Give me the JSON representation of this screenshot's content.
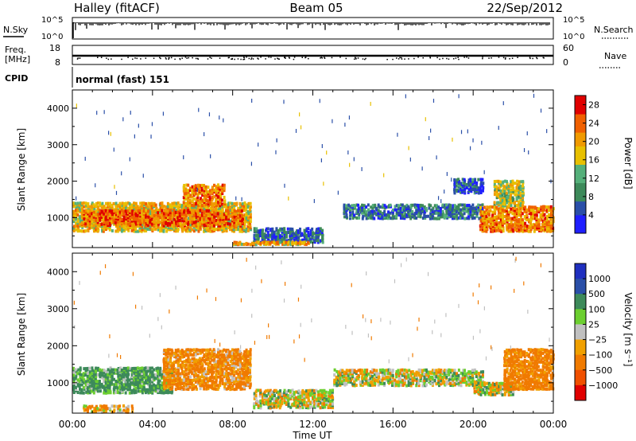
{
  "header": {
    "title": "Halley (fitACF)",
    "beam": "Beam 05",
    "date": "22/Sep/2012"
  },
  "panels": {
    "nsky_label": "N.Sky",
    "nsearch_label": "N.Search",
    "freq_label_1": "Freq.",
    "freq_label_2": "[MHz]",
    "nave_label": "Nave",
    "cpid_label": "CPID",
    "cpid_value": "normal (fast) 151",
    "nsky_ticks": [
      "10^5",
      "10^0"
    ],
    "nsearch_ticks": [
      "10^5",
      "10^0"
    ],
    "freq_ticks": [
      "18",
      "8"
    ],
    "nave_ticks": [
      "60",
      "0"
    ]
  },
  "colors": {
    "power_scale": [
      "#1f1fff",
      "#2a4fa8",
      "#3d8a5a",
      "#55b07a",
      "#e8c000",
      "#f09a00",
      "#f06000",
      "#e00000"
    ],
    "velocity_scale": [
      "#e00000",
      "#f05000",
      "#f07a00",
      "#f0a000",
      "#c0c0c0",
      "#6ccf30",
      "#3d8a5a",
      "#2a4fa8",
      "#1f2fbf"
    ]
  },
  "chart_data": [
    {
      "type": "heatmap",
      "title": "",
      "xlabel": "Time UT",
      "ylabel": "Slant Range [km]",
      "x_ticks": [
        "00:00",
        "04:00",
        "08:00",
        "12:00",
        "16:00",
        "20:00",
        "00:00"
      ],
      "y_ticks": [
        1000,
        2000,
        3000,
        4000
      ],
      "ylim": [
        180,
        4500
      ],
      "colorbar_label": "Power [dB]",
      "colorbar_ticks": [
        4,
        8,
        12,
        16,
        20,
        24,
        28
      ],
      "colorbar_range": [
        0,
        30
      ],
      "regions": [
        {
          "t0": 0.0,
          "t1": 8.9,
          "r0": 600,
          "r1": 1400,
          "value": 18
        },
        {
          "t0": 0.5,
          "t1": 8.5,
          "r0": 750,
          "r1": 1200,
          "value": 24
        },
        {
          "t0": 5.5,
          "t1": 7.6,
          "r0": 1300,
          "r1": 1900,
          "value": 22
        },
        {
          "t0": 9.0,
          "t1": 12.5,
          "r0": 300,
          "r1": 700,
          "value": 6
        },
        {
          "t0": 13.5,
          "t1": 20.5,
          "r0": 950,
          "r1": 1350,
          "value": 8
        },
        {
          "t0": 19.0,
          "t1": 20.5,
          "r0": 1650,
          "r1": 2050,
          "value": 6
        },
        {
          "t0": 20.3,
          "t1": 24.0,
          "r0": 600,
          "r1": 1300,
          "value": 22
        },
        {
          "t0": 21.0,
          "t1": 22.5,
          "r0": 1300,
          "r1": 2000,
          "value": 16
        },
        {
          "t0": 8.0,
          "t1": 11.8,
          "r0": 240,
          "r1": 320,
          "value": 20
        }
      ]
    },
    {
      "type": "heatmap",
      "title": "",
      "xlabel": "Time UT",
      "ylabel": "Slant Range [km]",
      "x_ticks": [
        "00:00",
        "04:00",
        "08:00",
        "12:00",
        "16:00",
        "20:00",
        "00:00"
      ],
      "y_ticks": [
        1000,
        2000,
        3000,
        4000
      ],
      "ylim": [
        180,
        4500
      ],
      "colorbar_label": "Velocity [m s⁻¹]",
      "colorbar_ticks": [
        "1000",
        "500",
        "100",
        "25",
        "−25",
        "−100",
        "−500",
        "−1000"
      ],
      "regions": [
        {
          "t0": 0.0,
          "t1": 5.0,
          "r0": 700,
          "r1": 1400,
          "value": 150
        },
        {
          "t0": 4.5,
          "t1": 8.9,
          "r0": 800,
          "r1": 1900,
          "value": -150
        },
        {
          "t0": 9.0,
          "t1": 13.0,
          "r0": 300,
          "r1": 800,
          "value": 0
        },
        {
          "t0": 13.0,
          "t1": 20.5,
          "r0": 900,
          "r1": 1350,
          "value": 0
        },
        {
          "t0": 20.0,
          "t1": 22.0,
          "r0": 650,
          "r1": 1000,
          "value": 0
        },
        {
          "t0": 21.5,
          "t1": 24.0,
          "r0": 800,
          "r1": 1900,
          "value": -200
        },
        {
          "t0": 0.5,
          "t1": 3.0,
          "r0": 180,
          "r1": 380,
          "value": -100
        }
      ]
    }
  ]
}
